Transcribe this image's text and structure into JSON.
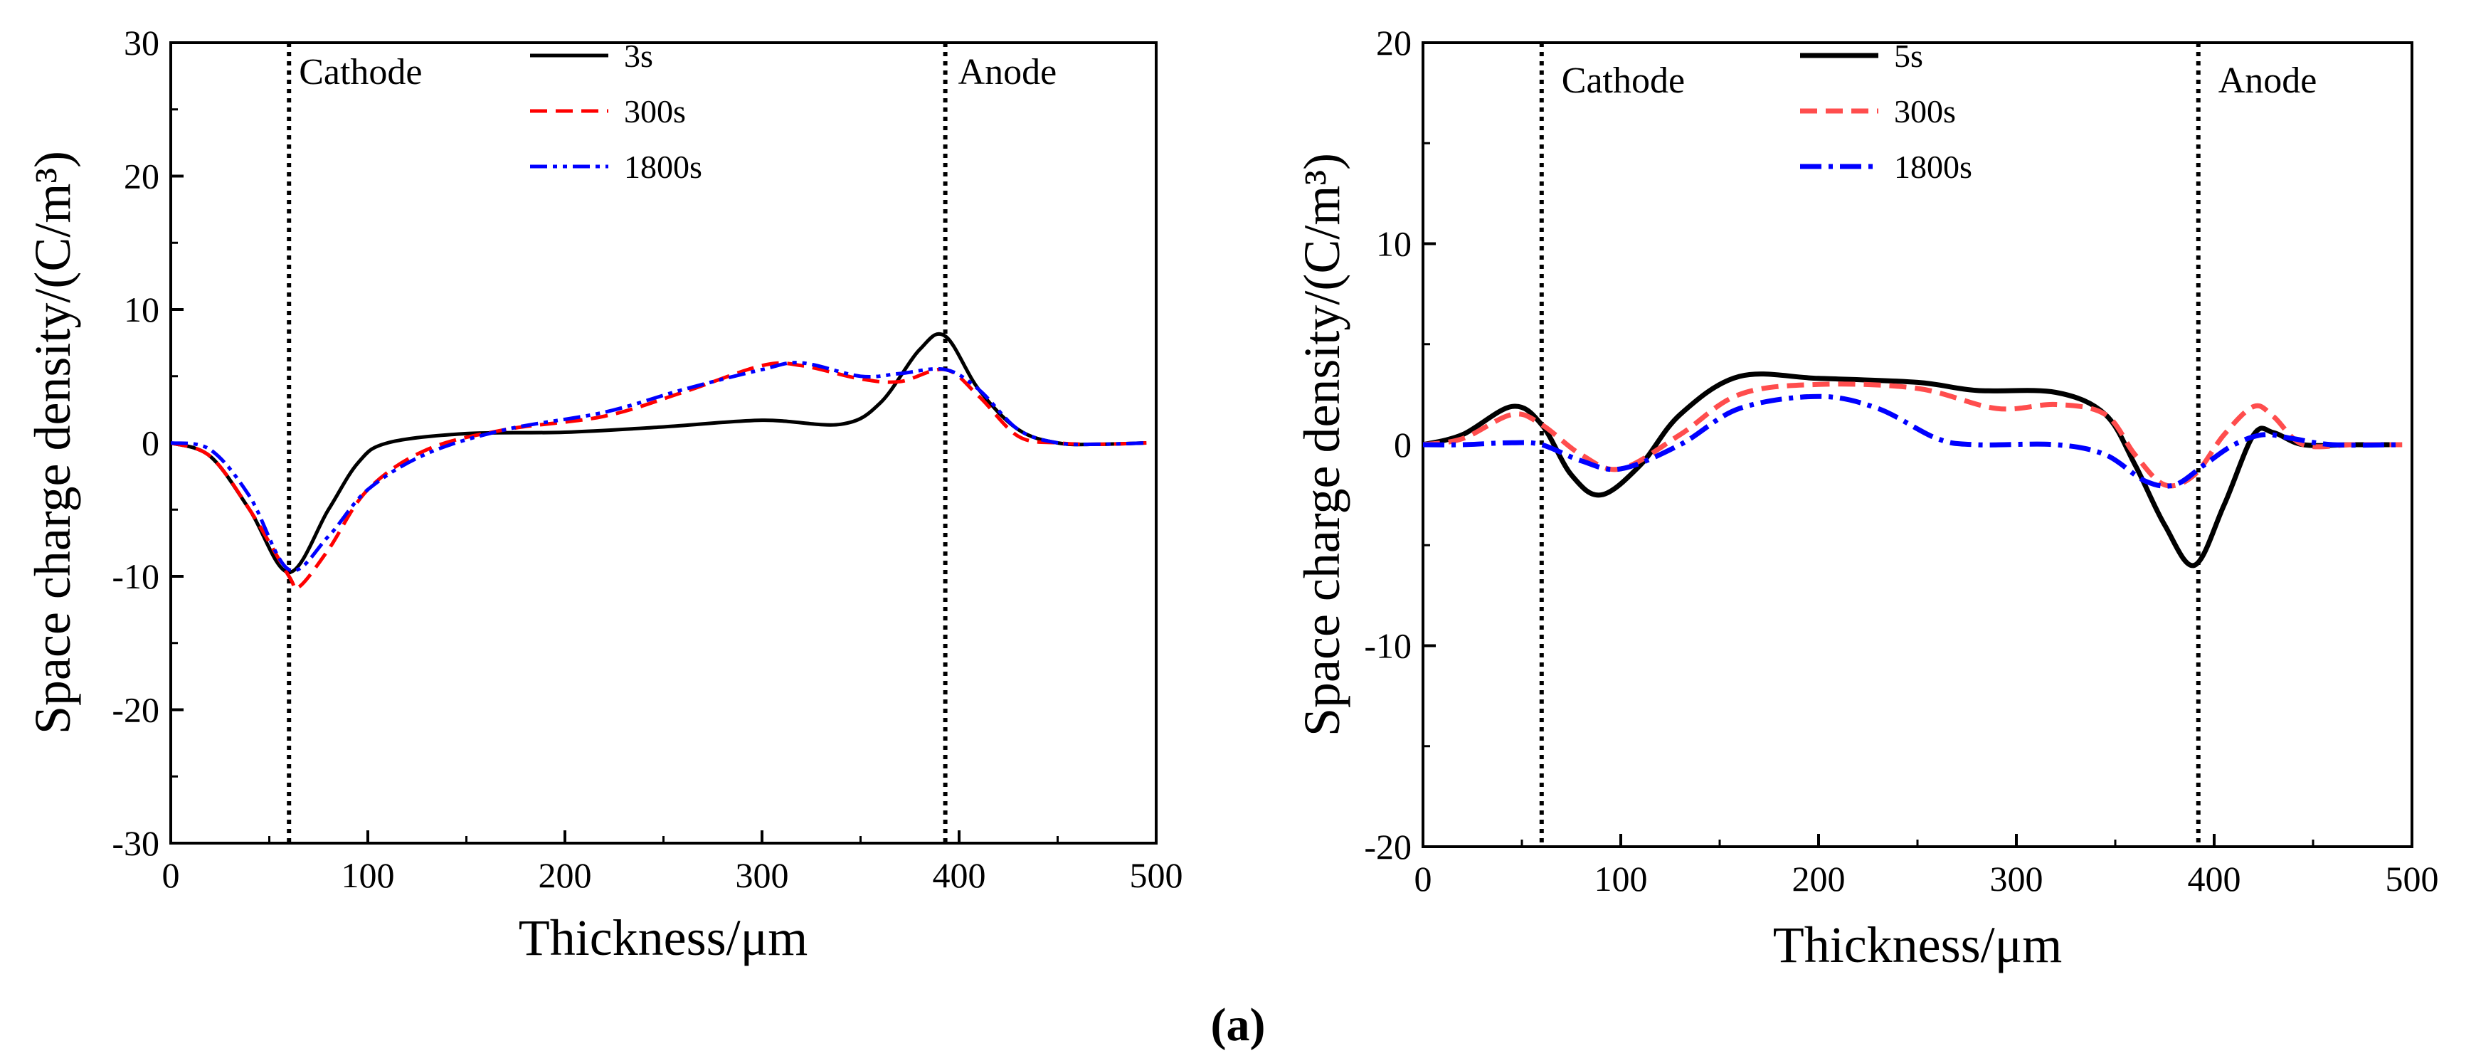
{
  "figure": {
    "caption": "(a)"
  },
  "chart_data": [
    {
      "type": "line",
      "title": "",
      "xlabel": "Thickness/μm",
      "ylabel": "Space charge density/(C/m³)",
      "xlim": [
        0,
        500
      ],
      "ylim": [
        -30,
        30
      ],
      "xticks": [
        0,
        100,
        200,
        300,
        400,
        500
      ],
      "yticks": [
        -30,
        -20,
        -10,
        0,
        10,
        20,
        30
      ],
      "grid": false,
      "legend_position": "top-center",
      "electrodes": [
        {
          "label": "Cathode",
          "x": 60
        },
        {
          "label": "Anode",
          "x": 393
        }
      ],
      "series": [
        {
          "name": "3s",
          "color": "#000000",
          "style": "solid",
          "x": [
            0,
            20,
            40,
            60,
            80,
            95,
            110,
            150,
            200,
            250,
            300,
            340,
            360,
            380,
            393,
            410,
            430,
            450,
            470,
            495
          ],
          "y": [
            0,
            -1,
            -5,
            -9.7,
            -5,
            -1.5,
            0,
            0.7,
            0.8,
            1.2,
            1.7,
            1.4,
            3,
            7,
            8,
            4,
            1,
            0,
            -0.1,
            0
          ]
        },
        {
          "name": "300s",
          "color": "#ff0000",
          "style": "dashed",
          "x": [
            0,
            20,
            40,
            60,
            65,
            80,
            100,
            130,
            170,
            220,
            260,
            300,
            320,
            350,
            370,
            393,
            410,
            430,
            450,
            470,
            495
          ],
          "y": [
            0,
            -1,
            -5,
            -10,
            -10.8,
            -8,
            -3.5,
            -0.5,
            1,
            2,
            3.8,
            5.8,
            5.8,
            4.8,
            4.6,
            5.5,
            3.5,
            0.5,
            0,
            -0.1,
            0
          ]
        },
        {
          "name": "1800s",
          "color": "#0000ff",
          "style": "dashdotdot",
          "x": [
            0,
            20,
            40,
            60,
            80,
            100,
            130,
            170,
            220,
            260,
            300,
            320,
            350,
            370,
            393,
            410,
            430,
            450,
            470,
            495
          ],
          "y": [
            0,
            -0.5,
            -4,
            -9.5,
            -7,
            -3.5,
            -0.8,
            1,
            2.3,
            4,
            5.5,
            6,
            5,
            5.2,
            5.5,
            4,
            1,
            0,
            -0.1,
            0
          ]
        }
      ]
    },
    {
      "type": "line",
      "title": "",
      "xlabel": "Thickness/μm",
      "ylabel": "Space charge density/(C/m³)",
      "xlim": [
        0,
        500
      ],
      "ylim": [
        -20,
        20
      ],
      "xticks": [
        0,
        100,
        200,
        300,
        400,
        500
      ],
      "yticks": [
        -20,
        -10,
        0,
        10,
        20
      ],
      "grid": false,
      "legend_position": "top-center",
      "electrodes": [
        {
          "label": "Cathode",
          "x": 60
        },
        {
          "label": "Anode",
          "x": 392
        }
      ],
      "series": [
        {
          "name": "5s",
          "color": "#000000",
          "style": "solid",
          "x": [
            0,
            20,
            45,
            60,
            75,
            90,
            110,
            130,
            160,
            200,
            250,
            280,
            320,
            345,
            360,
            375,
            390,
            405,
            420,
            430,
            445,
            470,
            495
          ],
          "y": [
            0,
            0.5,
            1.9,
            1,
            -1.5,
            -2.5,
            -1,
            1.5,
            3.4,
            3.3,
            3.1,
            2.7,
            2.6,
            1.5,
            -1,
            -4,
            -6,
            -3,
            0.5,
            0.6,
            0,
            0,
            0
          ]
        },
        {
          "name": "300s",
          "color": "#ff4d4d",
          "style": "dashed",
          "x": [
            0,
            20,
            45,
            60,
            80,
            100,
            130,
            160,
            200,
            250,
            290,
            320,
            345,
            360,
            375,
            390,
            405,
            420,
            430,
            445,
            470,
            495
          ],
          "y": [
            0,
            0.3,
            1.5,
            1,
            -0.5,
            -1.2,
            0.5,
            2.5,
            3,
            2.8,
            1.8,
            2,
            1.5,
            -0.5,
            -2,
            -1.5,
            0.5,
            1.9,
            1.4,
            0,
            0,
            0
          ]
        },
        {
          "name": "1800s",
          "color": "#0000ff",
          "style": "dashdot",
          "x": [
            0,
            20,
            45,
            60,
            80,
            100,
            130,
            160,
            200,
            230,
            260,
            280,
            320,
            345,
            365,
            380,
            395,
            410,
            425,
            440,
            460,
            495
          ],
          "y": [
            0,
            0,
            0.1,
            0,
            -0.8,
            -1.2,
            0,
            1.8,
            2.4,
            1.8,
            0.3,
            0,
            0,
            -0.5,
            -1.8,
            -2,
            -1,
            0,
            0.5,
            0.3,
            0,
            0
          ]
        }
      ]
    }
  ]
}
